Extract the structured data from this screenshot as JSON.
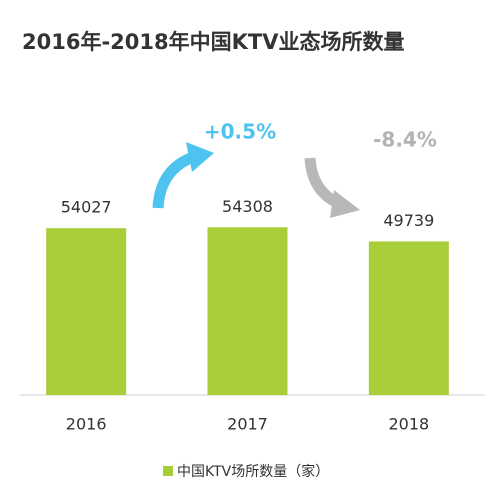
{
  "chart_data": {
    "type": "bar",
    "title": "2016年-2018年中国KTV业态场所数量",
    "categories": [
      "2016",
      "2017",
      "2018"
    ],
    "series": [
      {
        "name": "中国KTV场所数量（家）",
        "color": "#a8cf3a",
        "values": [
          54027,
          54308,
          49739
        ]
      }
    ],
    "ylim": [
      0,
      80000
    ],
    "annotations": [
      {
        "text": "+0.5%",
        "color": "#4ec3ef"
      },
      {
        "text": "-8.4%",
        "color": "#b2b2b2"
      }
    ],
    "legend": "bottom"
  }
}
